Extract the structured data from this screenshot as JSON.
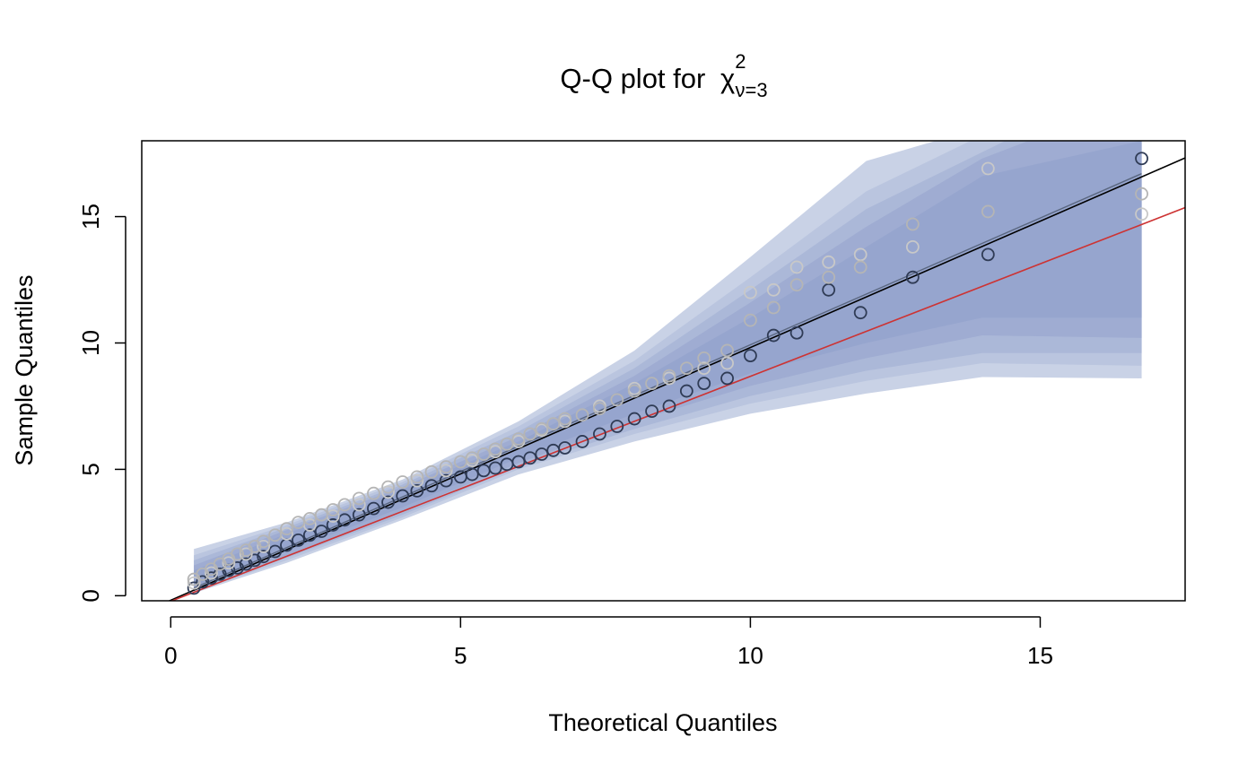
{
  "chart_data": {
    "type": "scatter",
    "title_prefix": "Q-Q plot for ",
    "title_symbol": "χ",
    "title_superscript": "2",
    "title_subscript": "ν=3",
    "xlabel": "Theoretical Quantiles",
    "ylabel": "Sample Quantiles",
    "xlim": [
      -0.5,
      17.5
    ],
    "ylim": [
      -0.2,
      18.0
    ],
    "xticks": [
      0,
      5,
      10,
      15
    ],
    "yticks": [
      0,
      5,
      10,
      15
    ],
    "band_x_range": [
      0.4,
      16.75
    ],
    "bands": [
      {
        "level": 0.99,
        "color": "#c9d2e6",
        "lower": [
          [
            0.4,
            0.1
          ],
          [
            2,
            1.3
          ],
          [
            4,
            3.0
          ],
          [
            6,
            4.8
          ],
          [
            8,
            6.1
          ],
          [
            10,
            7.2
          ],
          [
            12,
            8.0
          ],
          [
            14,
            8.65
          ],
          [
            16.75,
            8.6
          ]
        ],
        "upper": [
          [
            0.4,
            1.85
          ],
          [
            2,
            2.9
          ],
          [
            4,
            4.6
          ],
          [
            6,
            6.9
          ],
          [
            8,
            9.7
          ],
          [
            10,
            13.4
          ],
          [
            12,
            17.2
          ],
          [
            13.2,
            18.0
          ]
        ]
      },
      {
        "level": 0.95,
        "color": "#bac5df",
        "lower": [
          [
            0.4,
            0.15
          ],
          [
            2,
            1.4
          ],
          [
            4,
            3.1
          ],
          [
            6,
            5.0
          ],
          [
            8,
            6.4
          ],
          [
            10,
            7.6
          ],
          [
            12,
            8.5
          ],
          [
            14,
            9.2
          ],
          [
            16.75,
            9.1
          ]
        ],
        "upper": [
          [
            0.4,
            1.6
          ],
          [
            2,
            2.8
          ],
          [
            4,
            4.5
          ],
          [
            6,
            6.7
          ],
          [
            8,
            9.3
          ],
          [
            10,
            12.6
          ],
          [
            12,
            16.0
          ],
          [
            13.8,
            18.0
          ]
        ]
      },
      {
        "level": 0.9,
        "color": "#abb8d8",
        "lower": [
          [
            0.4,
            0.2
          ],
          [
            2,
            1.5
          ],
          [
            4,
            3.2
          ],
          [
            6,
            5.1
          ],
          [
            8,
            6.6
          ],
          [
            10,
            7.9
          ],
          [
            12,
            8.9
          ],
          [
            14,
            9.6
          ],
          [
            16.75,
            9.6
          ]
        ],
        "upper": [
          [
            0.4,
            1.4
          ],
          [
            2,
            2.7
          ],
          [
            4,
            4.4
          ],
          [
            6,
            6.5
          ],
          [
            8,
            9.0
          ],
          [
            10,
            12.1
          ],
          [
            12,
            15.3
          ],
          [
            14.4,
            18.0
          ]
        ]
      },
      {
        "level": 0.8,
        "color": "#9facd2",
        "lower": [
          [
            0.4,
            0.25
          ],
          [
            2,
            1.6
          ],
          [
            4,
            3.35
          ],
          [
            6,
            5.25
          ],
          [
            8,
            6.9
          ],
          [
            10,
            8.3
          ],
          [
            12,
            9.4
          ],
          [
            14,
            10.3
          ],
          [
            16.75,
            10.2
          ]
        ],
        "upper": [
          [
            0.4,
            1.2
          ],
          [
            2,
            2.6
          ],
          [
            4,
            4.3
          ],
          [
            6,
            6.3
          ],
          [
            8,
            8.7
          ],
          [
            10,
            11.6
          ],
          [
            12,
            14.6
          ],
          [
            14,
            17.3
          ],
          [
            14.8,
            18.0
          ]
        ]
      },
      {
        "level": 0.5,
        "color": "#96a5ce",
        "lower": [
          [
            0.4,
            0.3
          ],
          [
            2,
            1.75
          ],
          [
            4,
            3.5
          ],
          [
            6,
            5.45
          ],
          [
            8,
            7.2
          ],
          [
            10,
            8.8
          ],
          [
            12,
            10.0
          ],
          [
            14,
            11.0
          ],
          [
            16.75,
            11.0
          ]
        ],
        "upper": [
          [
            0.4,
            1.0
          ],
          [
            2,
            2.45
          ],
          [
            4,
            4.2
          ],
          [
            6,
            6.1
          ],
          [
            8,
            8.4
          ],
          [
            10,
            11.0
          ],
          [
            12,
            13.8
          ],
          [
            14,
            16.6
          ],
          [
            16.75,
            18.0
          ]
        ]
      }
    ],
    "reference_lines": [
      {
        "color": "#000000",
        "intercept": -0.18,
        "slope": 1.0
      },
      {
        "color": "#cd3333",
        "intercept": -0.22,
        "slope": 0.89
      }
    ],
    "fit_line": {
      "color": "#5a6780",
      "x": [
        0.4,
        16.75
      ],
      "y": [
        0.3,
        16.7
      ]
    },
    "series": [
      {
        "color": "#2f3b55",
        "x": [
          0.4,
          0.55,
          0.7,
          0.85,
          1.0,
          1.15,
          1.3,
          1.45,
          1.6,
          1.8,
          2.0,
          2.2,
          2.4,
          2.6,
          2.8,
          3.0,
          3.25,
          3.5,
          3.75,
          4.0,
          4.25,
          4.5,
          4.75,
          5.0,
          5.2,
          5.4,
          5.6,
          5.8,
          6.0,
          6.2,
          6.4,
          6.6,
          6.8,
          7.1,
          7.4,
          7.7,
          8.0,
          8.3,
          8.6,
          8.9,
          9.2,
          9.6,
          10.0,
          10.4,
          10.8,
          11.35,
          11.9,
          12.8,
          14.1,
          16.75
        ],
        "y": [
          0.3,
          0.55,
          0.7,
          0.85,
          1.0,
          1.1,
          1.25,
          1.4,
          1.55,
          1.75,
          2.0,
          2.2,
          2.4,
          2.55,
          2.8,
          3.0,
          3.2,
          3.45,
          3.7,
          3.95,
          4.15,
          4.35,
          4.55,
          4.7,
          4.8,
          4.95,
          5.05,
          5.2,
          5.3,
          5.45,
          5.6,
          5.75,
          5.85,
          6.1,
          6.4,
          6.7,
          7.0,
          7.3,
          7.5,
          8.1,
          8.4,
          8.6,
          9.5,
          10.3,
          10.4,
          12.1,
          11.2,
          12.6,
          13.5,
          17.3
        ]
      },
      {
        "color": "#b5b5b5",
        "x": [
          0.4,
          0.55,
          0.7,
          0.85,
          1.0,
          1.15,
          1.3,
          1.45,
          1.6,
          1.8,
          2.0,
          2.2,
          2.4,
          2.6,
          2.8,
          3.0,
          3.25,
          3.5,
          3.75,
          4.0,
          4.25,
          4.5,
          4.75,
          5.0,
          5.2,
          5.4,
          5.6,
          5.8,
          6.0,
          6.2,
          6.4,
          6.6,
          6.8,
          7.1,
          7.4,
          7.7,
          8.0,
          8.3,
          8.6,
          8.9,
          9.2,
          9.6,
          10.0,
          10.4,
          10.8,
          11.35,
          11.9,
          12.8,
          14.1,
          16.75
        ],
        "y": [
          0.65,
          0.85,
          1.05,
          1.25,
          1.45,
          1.65,
          1.8,
          1.95,
          2.15,
          2.4,
          2.65,
          2.9,
          3.05,
          3.2,
          3.4,
          3.6,
          3.85,
          4.05,
          4.3,
          4.5,
          4.7,
          4.9,
          5.1,
          5.3,
          5.45,
          5.6,
          5.8,
          6.0,
          6.2,
          6.4,
          6.6,
          6.8,
          7.0,
          7.15,
          7.4,
          7.75,
          8.1,
          8.4,
          8.7,
          9.0,
          9.4,
          9.7,
          10.9,
          11.4,
          12.3,
          12.6,
          13.0,
          14.7,
          15.2,
          15.9
        ]
      },
      {
        "color": "#c8c8c8",
        "x": [
          0.4,
          0.7,
          1.0,
          1.3,
          1.6,
          2.0,
          2.4,
          2.8,
          3.25,
          3.75,
          4.25,
          4.75,
          5.2,
          5.6,
          6.0,
          6.4,
          6.8,
          7.4,
          8.0,
          8.6,
          9.2,
          9.6,
          10.0,
          10.4,
          10.8,
          11.35,
          11.9,
          12.8,
          14.1,
          16.75
        ],
        "y": [
          0.5,
          0.9,
          1.3,
          1.65,
          1.95,
          2.45,
          2.8,
          3.15,
          3.6,
          4.1,
          4.55,
          4.95,
          5.35,
          5.7,
          6.1,
          6.55,
          6.9,
          7.5,
          8.2,
          8.6,
          9.0,
          9.2,
          12.0,
          12.1,
          13.0,
          13.2,
          13.5,
          13.8,
          16.9,
          15.1
        ]
      }
    ]
  }
}
